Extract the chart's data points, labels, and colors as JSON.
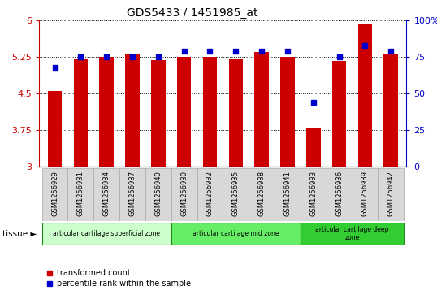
{
  "title": "GDS5433 / 1451985_at",
  "samples": [
    "GSM1256929",
    "GSM1256931",
    "GSM1256934",
    "GSM1256937",
    "GSM1256940",
    "GSM1256930",
    "GSM1256932",
    "GSM1256935",
    "GSM1256938",
    "GSM1256941",
    "GSM1256933",
    "GSM1256936",
    "GSM1256939",
    "GSM1256942"
  ],
  "transformed_counts": [
    4.55,
    5.22,
    5.25,
    5.3,
    5.19,
    5.25,
    5.25,
    5.23,
    5.35,
    5.25,
    3.78,
    5.18,
    5.93,
    5.32
  ],
  "percentile_ranks": [
    68,
    75,
    75,
    75,
    75,
    79,
    79,
    79,
    79,
    79,
    44,
    75,
    83,
    79
  ],
  "ylim_left": [
    3,
    6
  ],
  "ylim_right": [
    0,
    100
  ],
  "yticks_left": [
    3,
    3.75,
    4.5,
    5.25,
    6
  ],
  "ytick_labels_left": [
    "3",
    "3.75",
    "4.5",
    "5.25",
    "6"
  ],
  "yticks_right": [
    0,
    25,
    50,
    75,
    100
  ],
  "ytick_labels_right": [
    "0",
    "25",
    "50",
    "75",
    "100%"
  ],
  "bar_color": "#cc0000",
  "dot_color": "#0000cc",
  "bar_bottom": 3,
  "groups": [
    {
      "label": "articular cartilage superficial zone",
      "start": 0,
      "end": 5,
      "color": "#ccffcc"
    },
    {
      "label": "articular cartilage mid zone",
      "start": 5,
      "end": 10,
      "color": "#66ee66"
    },
    {
      "label": "articular cartilage deep\nzone",
      "start": 10,
      "end": 14,
      "color": "#33cc33"
    }
  ],
  "legend_items": [
    {
      "label": "transformed count",
      "color": "#cc0000"
    },
    {
      "label": "percentile rank within the sample",
      "color": "#0000cc"
    }
  ],
  "tissue_label": "tissue ►",
  "tick_color_left": "#cc0000",
  "tick_color_right": "#0000cc",
  "label_box_color": "#d8d8d8",
  "label_box_edge": "#aaaaaa"
}
